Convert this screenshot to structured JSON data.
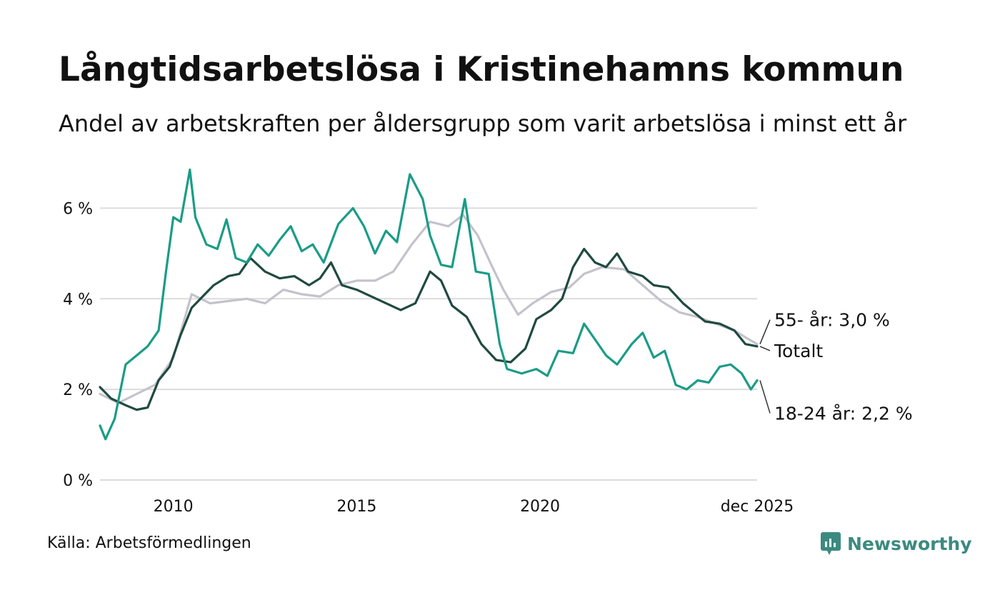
{
  "title": "Långtidsarbetslösa i Kristinehamns kommun",
  "subtitle": "Andel av arbetskraften per åldersgrupp som varit arbetslösa i minst ett år",
  "source": "Källa: Arbetsförmedlingen",
  "brand": "Newsworthy",
  "colors": {
    "total": "#1f4a40",
    "young": "#1a9c87",
    "old": "#c4c2cc",
    "grid": "#dcdcdc",
    "brand": "#3b8a80"
  },
  "chart_data": {
    "type": "line",
    "title": "Långtidsarbetslösa i Kristinehamns kommun",
    "xlabel": "",
    "ylabel": "",
    "ylim": [
      0,
      7
    ],
    "xlim": [
      2008.0,
      2025.92
    ],
    "yticks": [
      0,
      2,
      4,
      6
    ],
    "ytick_labels": [
      "0 %",
      "2 %",
      "4 %",
      "6 %"
    ],
    "xticks": [
      2010,
      2015,
      2020,
      2025.92
    ],
    "xtick_labels": [
      "2010",
      "2015",
      "2020",
      "dec 2025"
    ],
    "grid": true,
    "series": [
      {
        "name": "55- år",
        "color": "#c4c2cc",
        "end_label": "55- år: 3,0 %",
        "points": [
          [
            2008.0,
            1.9
          ],
          [
            2008.5,
            1.7
          ],
          [
            2009.0,
            1.9
          ],
          [
            2009.5,
            2.1
          ],
          [
            2010.0,
            2.7
          ],
          [
            2010.5,
            4.1
          ],
          [
            2011.0,
            3.9
          ],
          [
            2011.5,
            3.95
          ],
          [
            2012.0,
            4.0
          ],
          [
            2012.5,
            3.9
          ],
          [
            2013.0,
            4.2
          ],
          [
            2013.5,
            4.1
          ],
          [
            2014.0,
            4.05
          ],
          [
            2014.5,
            4.3
          ],
          [
            2015.0,
            4.4
          ],
          [
            2015.5,
            4.4
          ],
          [
            2016.0,
            4.6
          ],
          [
            2016.5,
            5.2
          ],
          [
            2017.0,
            5.7
          ],
          [
            2017.5,
            5.6
          ],
          [
            2017.9,
            5.85
          ],
          [
            2018.3,
            5.4
          ],
          [
            2018.7,
            4.7
          ],
          [
            2019.0,
            4.2
          ],
          [
            2019.4,
            3.65
          ],
          [
            2019.8,
            3.9
          ],
          [
            2020.3,
            4.15
          ],
          [
            2020.8,
            4.25
          ],
          [
            2021.2,
            4.55
          ],
          [
            2021.7,
            4.7
          ],
          [
            2022.3,
            4.65
          ],
          [
            2022.8,
            4.3
          ],
          [
            2023.3,
            3.95
          ],
          [
            2023.8,
            3.7
          ],
          [
            2024.3,
            3.6
          ],
          [
            2024.8,
            3.45
          ],
          [
            2025.3,
            3.3
          ],
          [
            2025.6,
            3.15
          ],
          [
            2025.92,
            3.0
          ]
        ]
      },
      {
        "name": "Totalt",
        "color": "#1f4a40",
        "end_label": "Totalt",
        "points": [
          [
            2008.0,
            2.05
          ],
          [
            2008.3,
            1.8
          ],
          [
            2008.7,
            1.65
          ],
          [
            2009.0,
            1.55
          ],
          [
            2009.3,
            1.6
          ],
          [
            2009.6,
            2.2
          ],
          [
            2009.9,
            2.5
          ],
          [
            2010.2,
            3.2
          ],
          [
            2010.5,
            3.8
          ],
          [
            2010.8,
            4.05
          ],
          [
            2011.1,
            4.3
          ],
          [
            2011.5,
            4.5
          ],
          [
            2011.8,
            4.55
          ],
          [
            2012.1,
            4.9
          ],
          [
            2012.5,
            4.6
          ],
          [
            2012.9,
            4.45
          ],
          [
            2013.3,
            4.5
          ],
          [
            2013.7,
            4.3
          ],
          [
            2014.0,
            4.45
          ],
          [
            2014.3,
            4.8
          ],
          [
            2014.6,
            4.3
          ],
          [
            2015.0,
            4.2
          ],
          [
            2015.4,
            4.05
          ],
          [
            2015.8,
            3.9
          ],
          [
            2016.2,
            3.75
          ],
          [
            2016.6,
            3.9
          ],
          [
            2017.0,
            4.6
          ],
          [
            2017.3,
            4.4
          ],
          [
            2017.6,
            3.85
          ],
          [
            2018.0,
            3.6
          ],
          [
            2018.4,
            3.0
          ],
          [
            2018.8,
            2.65
          ],
          [
            2019.2,
            2.6
          ],
          [
            2019.6,
            2.9
          ],
          [
            2019.9,
            3.55
          ],
          [
            2020.3,
            3.75
          ],
          [
            2020.6,
            4.0
          ],
          [
            2020.9,
            4.7
          ],
          [
            2021.2,
            5.1
          ],
          [
            2021.5,
            4.8
          ],
          [
            2021.8,
            4.7
          ],
          [
            2022.1,
            5.0
          ],
          [
            2022.4,
            4.6
          ],
          [
            2022.8,
            4.5
          ],
          [
            2023.1,
            4.3
          ],
          [
            2023.5,
            4.25
          ],
          [
            2023.9,
            3.9
          ],
          [
            2024.2,
            3.7
          ],
          [
            2024.5,
            3.5
          ],
          [
            2024.9,
            3.45
          ],
          [
            2025.3,
            3.3
          ],
          [
            2025.6,
            3.0
          ],
          [
            2025.92,
            2.95
          ]
        ]
      },
      {
        "name": "18-24 år",
        "color": "#1a9c87",
        "end_label": "18-24 år: 2,2 %",
        "points": [
          [
            2008.0,
            1.2
          ],
          [
            2008.15,
            0.9
          ],
          [
            2008.4,
            1.35
          ],
          [
            2008.7,
            2.55
          ],
          [
            2009.0,
            2.75
          ],
          [
            2009.3,
            2.95
          ],
          [
            2009.6,
            3.3
          ],
          [
            2009.8,
            4.6
          ],
          [
            2010.0,
            5.8
          ],
          [
            2010.2,
            5.7
          ],
          [
            2010.45,
            6.85
          ],
          [
            2010.6,
            5.8
          ],
          [
            2010.9,
            5.2
          ],
          [
            2011.2,
            5.1
          ],
          [
            2011.45,
            5.75
          ],
          [
            2011.7,
            4.9
          ],
          [
            2012.0,
            4.8
          ],
          [
            2012.3,
            5.2
          ],
          [
            2012.6,
            4.95
          ],
          [
            2012.9,
            5.3
          ],
          [
            2013.2,
            5.6
          ],
          [
            2013.5,
            5.05
          ],
          [
            2013.8,
            5.2
          ],
          [
            2014.1,
            4.8
          ],
          [
            2014.5,
            5.65
          ],
          [
            2014.9,
            6.0
          ],
          [
            2015.2,
            5.6
          ],
          [
            2015.5,
            5.0
          ],
          [
            2015.8,
            5.5
          ],
          [
            2016.1,
            5.25
          ],
          [
            2016.45,
            6.75
          ],
          [
            2016.8,
            6.2
          ],
          [
            2017.0,
            5.4
          ],
          [
            2017.3,
            4.75
          ],
          [
            2017.6,
            4.7
          ],
          [
            2017.95,
            6.2
          ],
          [
            2018.25,
            4.6
          ],
          [
            2018.6,
            4.55
          ],
          [
            2018.9,
            3.0
          ],
          [
            2019.1,
            2.45
          ],
          [
            2019.5,
            2.35
          ],
          [
            2019.9,
            2.45
          ],
          [
            2020.2,
            2.3
          ],
          [
            2020.5,
            2.85
          ],
          [
            2020.9,
            2.8
          ],
          [
            2021.2,
            3.45
          ],
          [
            2021.5,
            3.1
          ],
          [
            2021.8,
            2.75
          ],
          [
            2022.1,
            2.55
          ],
          [
            2022.5,
            3.0
          ],
          [
            2022.8,
            3.25
          ],
          [
            2023.1,
            2.7
          ],
          [
            2023.4,
            2.85
          ],
          [
            2023.7,
            2.1
          ],
          [
            2024.0,
            2.0
          ],
          [
            2024.3,
            2.2
          ],
          [
            2024.6,
            2.15
          ],
          [
            2024.9,
            2.5
          ],
          [
            2025.2,
            2.55
          ],
          [
            2025.5,
            2.35
          ],
          [
            2025.75,
            2.0
          ],
          [
            2025.92,
            2.2
          ]
        ]
      }
    ]
  }
}
